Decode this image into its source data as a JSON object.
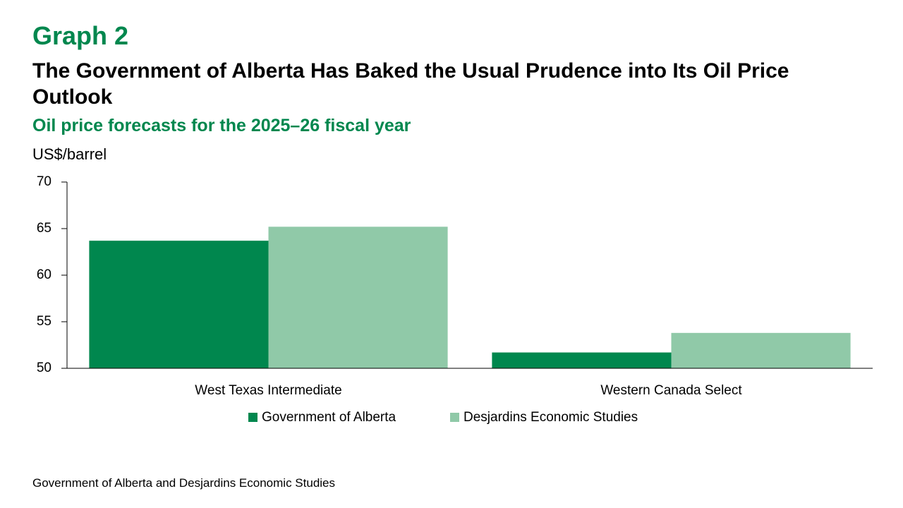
{
  "label": "Graph 2",
  "source": "Government of Alberta and Desjardins Economic Studies",
  "chart_data": {
    "type": "bar",
    "title": "The Government of Alberta Has Baked the Usual Prudence into Its Oil Price Outlook",
    "subtitle": "Oil price forecasts for the 2025–26 fiscal year",
    "y_label": "US$/barrel",
    "categories": [
      "West Texas Intermediate",
      "Western Canada Select"
    ],
    "series": [
      {
        "name": "Government of Alberta",
        "color": "#00874e",
        "values": [
          63.7,
          51.7
        ]
      },
      {
        "name": "Desjardins Economic Studies",
        "color": "#90c9a8",
        "values": [
          65.2,
          53.8
        ]
      }
    ],
    "ylim": [
      50,
      70
    ],
    "yticks": [
      50,
      55,
      60,
      65,
      70
    ],
    "grid": false,
    "legend": "bottom"
  }
}
